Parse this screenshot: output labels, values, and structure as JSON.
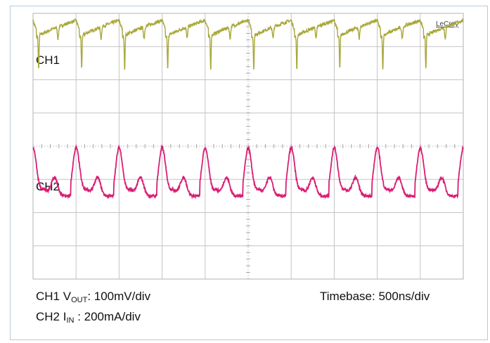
{
  "chart_data": {
    "type": "line",
    "title": "",
    "brand": "LeCroy",
    "grid": true,
    "divisions": {
      "x": 10,
      "y": 8
    },
    "timebase": "Timebase: 500ns/div",
    "x_unit": "ns",
    "x_range": [
      0,
      5000
    ],
    "series": [
      {
        "name": "CH1",
        "color": "#a8a83a",
        "scale": {
          "prefix": "CH1 V",
          "sub": "OUT",
          "suffix": ": 100mV/div"
        },
        "y_unit": "div",
        "period_ns": 500,
        "baseline_div": 3.55,
        "ripple_peak_to_peak_div": 0.55,
        "spike_depth_div": 1.05
      },
      {
        "name": "CH2",
        "color": "#d81e74",
        "scale": {
          "prefix": "CH2 I",
          "sub": "IN",
          "suffix": " : 200mA/div"
        },
        "y_unit": "div",
        "period_ns": 500,
        "center_div": -0.7,
        "large_peak_amplitude_div": 1.45,
        "small_peak_amplitude_div": 0.55,
        "trough_div": -1.65
      }
    ]
  }
}
